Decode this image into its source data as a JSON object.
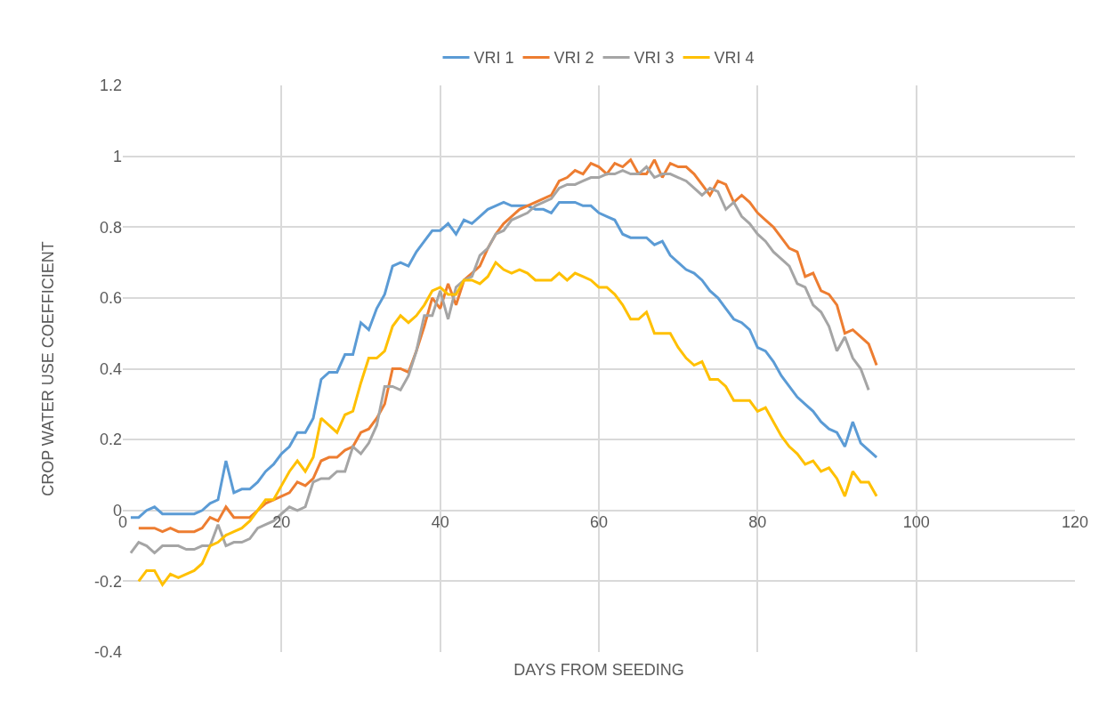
{
  "chart_data": {
    "type": "line",
    "xlabel": "DAYS FROM SEEDING",
    "ylabel": "CROP WATER USE COEFFICIENT",
    "x": [
      1,
      2,
      3,
      4,
      5,
      6,
      7,
      8,
      9,
      10,
      11,
      12,
      13,
      14,
      15,
      16,
      17,
      18,
      19,
      20,
      21,
      22,
      23,
      24,
      25,
      26,
      27,
      28,
      29,
      30,
      31,
      32,
      33,
      34,
      35,
      36,
      37,
      38,
      39,
      40,
      41,
      42,
      43,
      44,
      45,
      46,
      47,
      48,
      49,
      50,
      51,
      52,
      53,
      54,
      55,
      56,
      57,
      58,
      59,
      60,
      61,
      62,
      63,
      64,
      65,
      66,
      67,
      68,
      69,
      70,
      71,
      72,
      73,
      74,
      75,
      76,
      77,
      78,
      79,
      80,
      81,
      82,
      83,
      84,
      85,
      86,
      87,
      88,
      89,
      90,
      91,
      92,
      93,
      94,
      95
    ],
    "series": [
      {
        "name": "VRI 1",
        "color": "#5b9bd5",
        "values": [
          -0.02,
          -0.02,
          0,
          0.01,
          -0.01,
          -0.01,
          -0.01,
          -0.01,
          -0.01,
          0,
          0.02,
          0.03,
          0.14,
          0.05,
          0.06,
          0.06,
          0.08,
          0.11,
          0.13,
          0.16,
          0.18,
          0.22,
          0.22,
          0.26,
          0.37,
          0.39,
          0.39,
          0.44,
          0.44,
          0.53,
          0.51,
          0.57,
          0.61,
          0.69,
          0.7,
          0.69,
          0.73,
          0.76,
          0.79,
          0.79,
          0.81,
          0.78,
          0.82,
          0.81,
          0.83,
          0.85,
          0.86,
          0.87,
          0.86,
          0.86,
          0.86,
          0.85,
          0.85,
          0.84,
          0.87,
          0.87,
          0.87,
          0.86,
          0.86,
          0.84,
          0.83,
          0.82,
          0.78,
          0.77,
          0.77,
          0.77,
          0.75,
          0.76,
          0.72,
          0.7,
          0.68,
          0.67,
          0.65,
          0.62,
          0.6,
          0.57,
          0.54,
          0.53,
          0.51,
          0.46,
          0.45,
          0.42,
          0.38,
          0.35,
          0.32,
          0.3,
          0.28,
          0.25,
          0.23,
          0.22,
          0.18,
          0.25,
          0.19,
          0.17,
          0.15
        ]
      },
      {
        "name": "VRI 2",
        "color": "#ed7d31",
        "values": [
          null,
          -0.05,
          -0.05,
          -0.05,
          -0.06,
          -0.05,
          -0.06,
          -0.06,
          -0.06,
          -0.05,
          -0.02,
          -0.03,
          0.01,
          -0.02,
          -0.02,
          -0.02,
          0,
          0.02,
          0.03,
          0.04,
          0.05,
          0.08,
          0.07,
          0.09,
          0.14,
          0.15,
          0.15,
          0.17,
          0.18,
          0.22,
          0.23,
          0.26,
          0.3,
          0.4,
          0.4,
          0.39,
          0.45,
          0.52,
          0.6,
          0.57,
          0.64,
          0.58,
          0.65,
          0.67,
          0.69,
          0.74,
          0.78,
          0.81,
          0.83,
          0.85,
          0.86,
          0.87,
          0.88,
          0.89,
          0.93,
          0.94,
          0.96,
          0.95,
          0.98,
          0.97,
          0.95,
          0.98,
          0.97,
          0.99,
          0.95,
          0.95,
          0.99,
          0.94,
          0.98,
          0.97,
          0.97,
          0.95,
          0.92,
          0.89,
          0.93,
          0.92,
          0.87,
          0.89,
          0.87,
          0.84,
          0.82,
          0.8,
          0.77,
          0.74,
          0.73,
          0.66,
          0.67,
          0.62,
          0.61,
          0.58,
          0.5,
          0.51,
          0.49,
          0.47,
          0.41
        ]
      },
      {
        "name": "VRI 3",
        "color": "#a5a5a5",
        "values": [
          -0.12,
          -0.09,
          -0.1,
          -0.12,
          -0.1,
          -0.1,
          -0.1,
          -0.11,
          -0.11,
          -0.1,
          -0.1,
          -0.04,
          -0.1,
          -0.09,
          -0.09,
          -0.08,
          -0.05,
          -0.04,
          -0.03,
          -0.01,
          0.01,
          0,
          0.01,
          0.08,
          0.09,
          0.09,
          0.11,
          0.11,
          0.18,
          0.16,
          0.19,
          0.24,
          0.35,
          0.35,
          0.34,
          0.38,
          0.45,
          0.55,
          0.55,
          0.62,
          0.54,
          0.63,
          0.65,
          0.66,
          0.72,
          0.74,
          0.78,
          0.79,
          0.82,
          0.83,
          0.84,
          0.86,
          0.87,
          0.88,
          0.91,
          0.92,
          0.92,
          0.93,
          0.94,
          0.94,
          0.95,
          0.95,
          0.96,
          0.95,
          0.95,
          0.97,
          0.94,
          0.95,
          0.95,
          0.94,
          0.93,
          0.91,
          0.89,
          0.91,
          0.9,
          0.85,
          0.87,
          0.83,
          0.81,
          0.78,
          0.76,
          0.73,
          0.71,
          0.69,
          0.64,
          0.63,
          0.58,
          0.56,
          0.52,
          0.45,
          0.49,
          0.43,
          0.4,
          0.34,
          null
        ]
      },
      {
        "name": "VRI 4",
        "color": "#ffc000",
        "values": [
          null,
          -0.2,
          -0.17,
          -0.17,
          -0.21,
          -0.18,
          -0.19,
          -0.18,
          -0.17,
          -0.15,
          -0.1,
          -0.09,
          -0.07,
          -0.06,
          -0.05,
          -0.03,
          0,
          0.03,
          0.03,
          0.07,
          0.11,
          0.14,
          0.11,
          0.15,
          0.26,
          0.24,
          0.22,
          0.27,
          0.28,
          0.36,
          0.43,
          0.43,
          0.45,
          0.52,
          0.55,
          0.53,
          0.55,
          0.58,
          0.62,
          0.63,
          0.61,
          0.61,
          0.65,
          0.65,
          0.64,
          0.66,
          0.7,
          0.68,
          0.67,
          0.68,
          0.67,
          0.65,
          0.65,
          0.65,
          0.67,
          0.65,
          0.67,
          0.66,
          0.65,
          0.63,
          0.63,
          0.61,
          0.58,
          0.54,
          0.54,
          0.56,
          0.5,
          0.5,
          0.5,
          0.46,
          0.43,
          0.41,
          0.42,
          0.37,
          0.37,
          0.35,
          0.31,
          0.31,
          0.31,
          0.28,
          0.29,
          0.25,
          0.21,
          0.18,
          0.16,
          0.13,
          0.14,
          0.11,
          0.12,
          0.09,
          0.04,
          0.11,
          0.08,
          0.08,
          0.04
        ]
      }
    ],
    "xlim": [
      0,
      120
    ],
    "xticks": [
      0,
      20,
      40,
      60,
      80,
      100,
      120
    ],
    "ylim": [
      -0.4,
      1.2
    ],
    "yticks": [
      -0.4,
      -0.2,
      0,
      0.2,
      0.4,
      0.6,
      0.8,
      1,
      1.2
    ],
    "grid": true,
    "legend": "top",
    "marker": "none",
    "line_style": "solid"
  }
}
